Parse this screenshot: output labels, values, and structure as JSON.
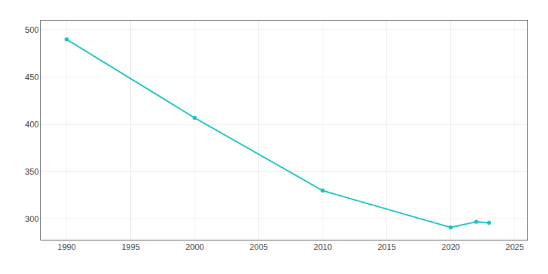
{
  "chart_data": {
    "type": "line",
    "x": [
      1990,
      2000,
      2010,
      2020,
      2022,
      2023
    ],
    "values": [
      490,
      407,
      330,
      291,
      297,
      296
    ],
    "color": "#17c3c3",
    "marker": "circle",
    "xlim": [
      1988,
      2026
    ],
    "xticks": [
      1990,
      1995,
      2000,
      2005,
      2010,
      2015,
      2020,
      2025
    ],
    "ylim": [
      278,
      510
    ],
    "yticks": [
      300,
      350,
      400,
      450,
      500
    ],
    "grid": true
  }
}
